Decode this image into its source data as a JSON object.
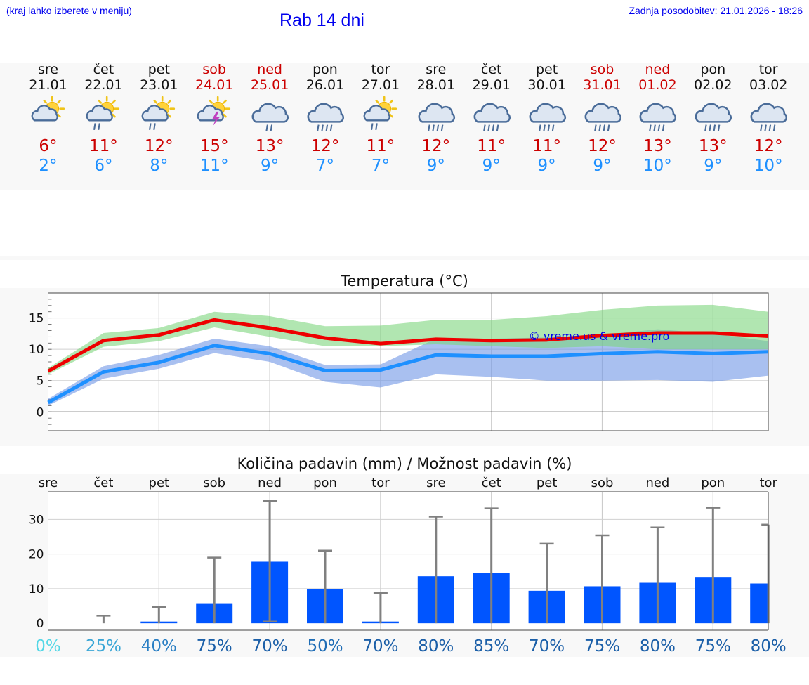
{
  "header": {
    "menu_hint": "(kraj lahko izberete v meniju)",
    "title": "Rab 14 dni",
    "last_update": "Zadnja posodobitev: 21.01.2026 - 18:26"
  },
  "days": [
    {
      "name": "sre",
      "date": "21.01",
      "icon": "sun-cloud-icon",
      "tmax": "6°",
      "tmin": "2°",
      "weekend": false
    },
    {
      "name": "čet",
      "date": "22.01",
      "icon": "sun-cloud-rain-icon",
      "tmax": "11°",
      "tmin": "6°",
      "weekend": false
    },
    {
      "name": "pet",
      "date": "23.01",
      "icon": "sun-cloud-rain-icon",
      "tmax": "12°",
      "tmin": "8°",
      "weekend": false
    },
    {
      "name": "sob",
      "date": "24.01",
      "icon": "sun-cloud-thunder-icon",
      "tmax": "15°",
      "tmin": "11°",
      "weekend": true
    },
    {
      "name": "ned",
      "date": "25.01",
      "icon": "cloud-rain-icon",
      "tmax": "13°",
      "tmin": "9°",
      "weekend": true
    },
    {
      "name": "pon",
      "date": "26.01",
      "icon": "cloud-heavy-rain-icon",
      "tmax": "12°",
      "tmin": "7°",
      "weekend": false
    },
    {
      "name": "tor",
      "date": "27.01",
      "icon": "sun-cloud-rain-icon",
      "tmax": "11°",
      "tmin": "7°",
      "weekend": false
    },
    {
      "name": "sre",
      "date": "28.01",
      "icon": "cloud-heavy-rain-icon",
      "tmax": "12°",
      "tmin": "9°",
      "weekend": false
    },
    {
      "name": "čet",
      "date": "29.01",
      "icon": "cloud-heavy-rain-icon",
      "tmax": "11°",
      "tmin": "9°",
      "weekend": false
    },
    {
      "name": "pet",
      "date": "30.01",
      "icon": "cloud-heavy-rain-icon",
      "tmax": "11°",
      "tmin": "9°",
      "weekend": false
    },
    {
      "name": "sob",
      "date": "31.01",
      "icon": "cloud-heavy-rain-icon",
      "tmax": "12°",
      "tmin": "9°",
      "weekend": true
    },
    {
      "name": "ned",
      "date": "01.02",
      "icon": "cloud-heavy-rain-icon",
      "tmax": "13°",
      "tmin": "10°",
      "weekend": true
    },
    {
      "name": "pon",
      "date": "02.02",
      "icon": "cloud-heavy-rain-icon",
      "tmax": "13°",
      "tmin": "9°",
      "weekend": false
    },
    {
      "name": "tor",
      "date": "03.02",
      "icon": "cloud-heavy-rain-icon",
      "tmax": "12°",
      "tmin": "10°",
      "weekend": false
    }
  ],
  "colors": {
    "max": "#ee0000",
    "min": "#1e90ff",
    "max_band": "#7dd67d",
    "min_band": "#6f96e6",
    "bar": "#0055ff",
    "whisker": "#808080"
  },
  "chart_data": [
    {
      "type": "line",
      "title": "Temperatura (°C)",
      "watermark": "© vreme.us & vreme.pro",
      "x": [
        0,
        1,
        2,
        3,
        4,
        5,
        6,
        7,
        8,
        9,
        10,
        11,
        12,
        13
      ],
      "ylim": [
        -3,
        19
      ],
      "yticks": [
        0,
        5,
        10,
        15
      ],
      "series": [
        {
          "name": "max",
          "values": [
            6.5,
            11.4,
            12.3,
            14.7,
            13.4,
            11.8,
            10.9,
            11.6,
            11.4,
            11.5,
            12.2,
            12.6,
            12.6,
            12.1
          ],
          "band_low": [
            6.0,
            10.4,
            11.3,
            13.5,
            12.0,
            10.5,
            10.5,
            10.8,
            10.5,
            10.2,
            10.5,
            10.0,
            10.0,
            10.0
          ],
          "band_high": [
            7.0,
            12.6,
            13.4,
            16.0,
            15.3,
            13.7,
            13.8,
            14.7,
            14.7,
            15.3,
            16.3,
            17.0,
            17.1,
            16.0
          ]
        },
        {
          "name": "min",
          "values": [
            1.5,
            6.4,
            7.9,
            10.6,
            9.3,
            6.6,
            6.7,
            9.1,
            8.9,
            8.9,
            9.3,
            9.6,
            9.3,
            9.6
          ],
          "band_low": [
            1.0,
            5.3,
            6.9,
            9.4,
            8.0,
            4.8,
            3.9,
            6.0,
            5.6,
            5.0,
            5.0,
            5.1,
            4.8,
            5.8
          ],
          "band_high": [
            2.1,
            7.3,
            9.1,
            11.7,
            10.5,
            7.5,
            7.6,
            11.7,
            11.7,
            11.9,
            12.3,
            13.2,
            12.5,
            11.3
          ]
        }
      ]
    },
    {
      "type": "bar",
      "title": "Količina padavin (mm) / Možnost padavin (%)",
      "categories": [
        "sre",
        "čet",
        "pet",
        "sob",
        "ned",
        "pon",
        "tor",
        "sre",
        "čet",
        "pet",
        "sob",
        "ned",
        "pon",
        "tor"
      ],
      "values": [
        0,
        0,
        0.5,
        5.8,
        17.8,
        9.8,
        0.5,
        13.6,
        14.5,
        9.4,
        10.7,
        11.7,
        13.4,
        11.5
      ],
      "whisker_low": [
        0,
        0,
        0,
        0,
        0.5,
        0,
        0,
        0,
        0,
        0,
        0,
        0,
        0,
        0
      ],
      "whisker_high": [
        0,
        2.2,
        4.7,
        19.0,
        35.3,
        21.0,
        8.8,
        30.8,
        33.2,
        23.0,
        25.4,
        27.7,
        33.4,
        28.5
      ],
      "ylim": [
        -2,
        38
      ],
      "yticks": [
        0,
        10,
        20,
        30
      ],
      "probabilities": [
        "0%",
        "25%",
        "40%",
        "75%",
        "70%",
        "50%",
        "70%",
        "80%",
        "85%",
        "70%",
        "75%",
        "80%",
        "75%",
        "80%"
      ],
      "prob_colors": [
        "#55d7e6",
        "#3aa6d6",
        "#2a7fc4",
        "#1b5fa8",
        "#1b5fa8",
        "#1f6db6",
        "#1b5fa8",
        "#1b5fa8",
        "#1b5fa8",
        "#1b5fa8",
        "#1b5fa8",
        "#1b5fa8",
        "#1b5fa8",
        "#1b5fa8"
      ]
    }
  ]
}
